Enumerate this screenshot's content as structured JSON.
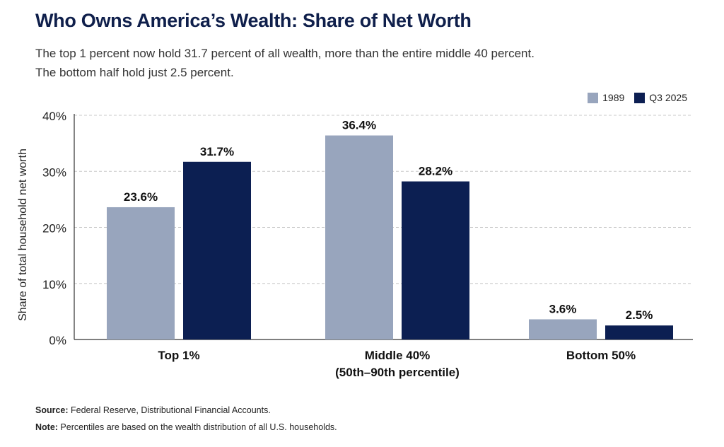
{
  "title": "Who Owns America’s Wealth: Share of Net Worth",
  "subtitle_line1": "The top 1 percent now hold 31.7 percent of all wealth, more than the entire middle 40 percent.",
  "subtitle_line2": "The bottom half hold just 2.5 percent.",
  "source_label": "Source:",
  "source_text": " Federal Reserve, Distributional Financial Accounts.",
  "note_label": "Note:",
  "note_text": " Percentiles are based on the wealth distribution of all U.S. households.",
  "colors": {
    "series_1989": "#98a5bd",
    "series_2025": "#0c1f52",
    "grid": "#c8c8c8",
    "axis": "#333333"
  },
  "chart_data": {
    "type": "bar",
    "title": "Who Owns America’s Wealth: Share of Net Worth",
    "ylabel": "Share of total household net worth",
    "xlabel": "",
    "categories": [
      [
        "Top 1%"
      ],
      [
        "Middle 40%",
        "(50th–90th percentile)"
      ],
      [
        "Bottom 50%"
      ]
    ],
    "series": [
      {
        "name": "1989",
        "values": [
          23.6,
          36.4,
          3.6
        ],
        "labels": [
          "23.6%",
          "36.4%",
          "3.6%"
        ]
      },
      {
        "name": "Q3 2025",
        "values": [
          31.7,
          28.2,
          2.5
        ],
        "labels": [
          "31.7%",
          "28.2%",
          "2.5%"
        ]
      }
    ],
    "ylim": [
      0,
      40
    ],
    "yticks": [
      0,
      10,
      20,
      30,
      40
    ],
    "ytick_labels": [
      "0%",
      "10%",
      "20%",
      "30%",
      "40%"
    ],
    "grid": true,
    "legend_position": "top-right"
  }
}
